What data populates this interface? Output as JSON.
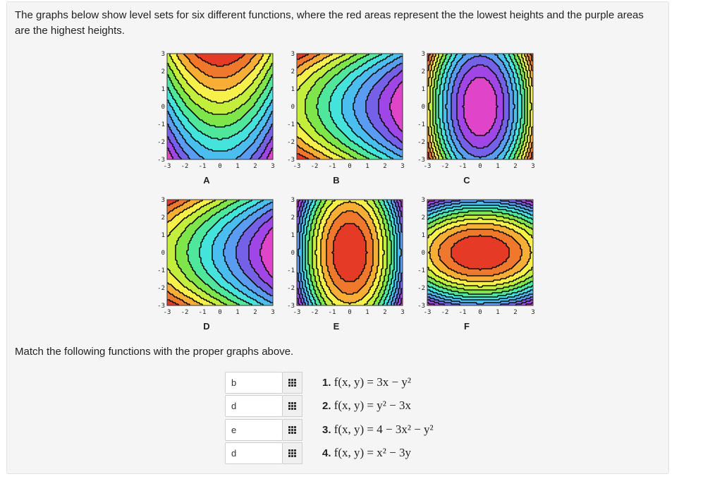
{
  "intro_text": "The graphs below show level sets for six different functions, where the red areas represent the the lowest heights and the purple areas are the highest heights.",
  "tick_labels": [
    "-3",
    "-2",
    "-1",
    "0",
    "1",
    "2",
    "3"
  ],
  "graphs": [
    {
      "label": "A"
    },
    {
      "label": "B"
    },
    {
      "label": "C"
    },
    {
      "label": "D"
    },
    {
      "label": "E"
    },
    {
      "label": "F"
    }
  ],
  "palette": [
    "#e53a25",
    "#f0782c",
    "#f8ad35",
    "#f8f04a",
    "#c4ee3c",
    "#7ee64a",
    "#4fe79b",
    "#44e3db",
    "#4bbef0",
    "#5a9cf2",
    "#7461e8",
    "#a045e6",
    "#e044c8"
  ],
  "matching": {
    "prompt": "Match the following functions with the proper graphs above.",
    "rows": [
      {
        "answer": "b",
        "number": "1.",
        "function": "f(x, y) = 3x − y²"
      },
      {
        "answer": "d",
        "number": "2.",
        "function": "f(x, y) = y² − 3x"
      },
      {
        "answer": "e",
        "number": "3.",
        "function": "f(x, y) = 4 − 3x² − y²"
      },
      {
        "answer": "d",
        "number": "4.",
        "function": "f(x, y) = x² − 3y"
      }
    ]
  }
}
